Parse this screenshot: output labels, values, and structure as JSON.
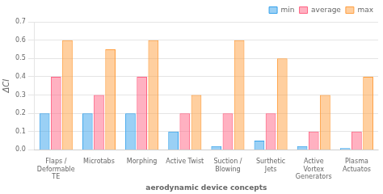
{
  "chart_data": {
    "type": "bar",
    "categories": [
      "Flaps /\nDeformable\nTE",
      "Microtabs",
      "Morphing",
      "Active Twist",
      "Suction /\nBlowing",
      "Surthetic\nJets",
      "Active\nVortex\nGenerators",
      "Plasma\nActuatos"
    ],
    "series": [
      {
        "name": "min",
        "values": [
          0.2,
          0.2,
          0.2,
          0.1,
          0.02,
          0.05,
          0.02,
          0.01
        ]
      },
      {
        "name": "average",
        "values": [
          0.4,
          0.3,
          0.4,
          0.2,
          0.2,
          0.2,
          0.1,
          0.1
        ]
      },
      {
        "name": "max",
        "values": [
          0.6,
          0.55,
          0.6,
          0.3,
          0.6,
          0.5,
          0.3,
          0.4
        ]
      }
    ],
    "xlabel": "aerodynamic device concepts",
    "ylabel": "ΔCl",
    "ylim": [
      0,
      0.7
    ],
    "yticks": [
      {
        "value": 0.0,
        "label": "0.0"
      },
      0.1,
      0.2,
      0.3,
      0.4,
      0.5,
      0.6,
      0.7
    ],
    "grid": true,
    "legend": "upper right"
  }
}
